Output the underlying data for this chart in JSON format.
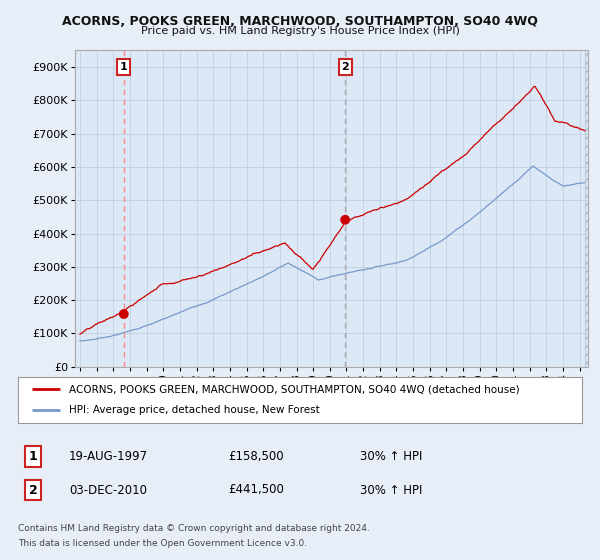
{
  "title": "ACORNS, POOKS GREEN, MARCHWOOD, SOUTHAMPTON, SO40 4WQ",
  "subtitle": "Price paid vs. HM Land Registry's House Price Index (HPI)",
  "ylabel_ticks": [
    "£0",
    "£100K",
    "£200K",
    "£300K",
    "£400K",
    "£500K",
    "£600K",
    "£700K",
    "£800K",
    "£900K"
  ],
  "ylim": [
    0,
    950000
  ],
  "xlim_start": 1994.7,
  "xlim_end": 2025.5,
  "red_line_color": "#cc0000",
  "blue_line_color": "#7799cc",
  "dashed1_color": "#ff8888",
  "dashed2_color": "#aaaaaa",
  "point1_year": 1997.63,
  "point1_value": 158500,
  "point2_year": 2010.92,
  "point2_value": 441500,
  "legend_red_label": "ACORNS, POOKS GREEN, MARCHWOOD, SOUTHAMPTON, SO40 4WQ (detached house)",
  "legend_blue_label": "HPI: Average price, detached house, New Forest",
  "table_row1": [
    "1",
    "19-AUG-1997",
    "£158,500",
    "30% ↑ HPI"
  ],
  "table_row2": [
    "2",
    "03-DEC-2010",
    "£441,500",
    "30% ↑ HPI"
  ],
  "footer1": "Contains HM Land Registry data © Crown copyright and database right 2024.",
  "footer2": "This data is licensed under the Open Government Licence v3.0.",
  "background_color": "#e8eef8",
  "plot_bg_color": "#dce8f5"
}
